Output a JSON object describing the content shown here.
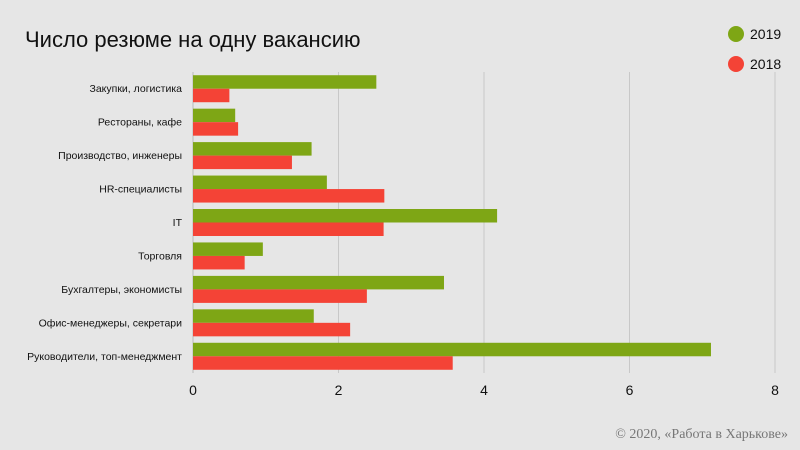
{
  "title": "Число резюме на одну вакансию",
  "copyright": "© 2020, «Работа в Харькове»",
  "chart_data": {
    "type": "bar",
    "orientation": "horizontal",
    "title": "Число резюме на одну вакансию",
    "xlabel": "",
    "ylabel": "",
    "xlim": [
      0,
      8
    ],
    "x_ticks": [
      0,
      2,
      4,
      6,
      8
    ],
    "grid": true,
    "legend_position": "top-right",
    "categories": [
      "Закупки, логистика",
      "Рестораны, кафе",
      "Производство, инженеры",
      "HR-специалисты",
      "IT",
      "Торговля",
      "Бухгалтеры, экономисты",
      "Офис-менеджеры, секретари",
      "Руководители, топ-менеджмент"
    ],
    "series": [
      {
        "name": "2019",
        "color": "#7ea615",
        "values": [
          2.52,
          0.58,
          1.63,
          1.84,
          4.18,
          0.96,
          3.45,
          1.66,
          7.12
        ]
      },
      {
        "name": "2018",
        "color": "#f44336",
        "values": [
          0.5,
          0.62,
          1.36,
          2.63,
          2.62,
          0.71,
          2.39,
          2.16,
          3.57
        ]
      }
    ]
  }
}
